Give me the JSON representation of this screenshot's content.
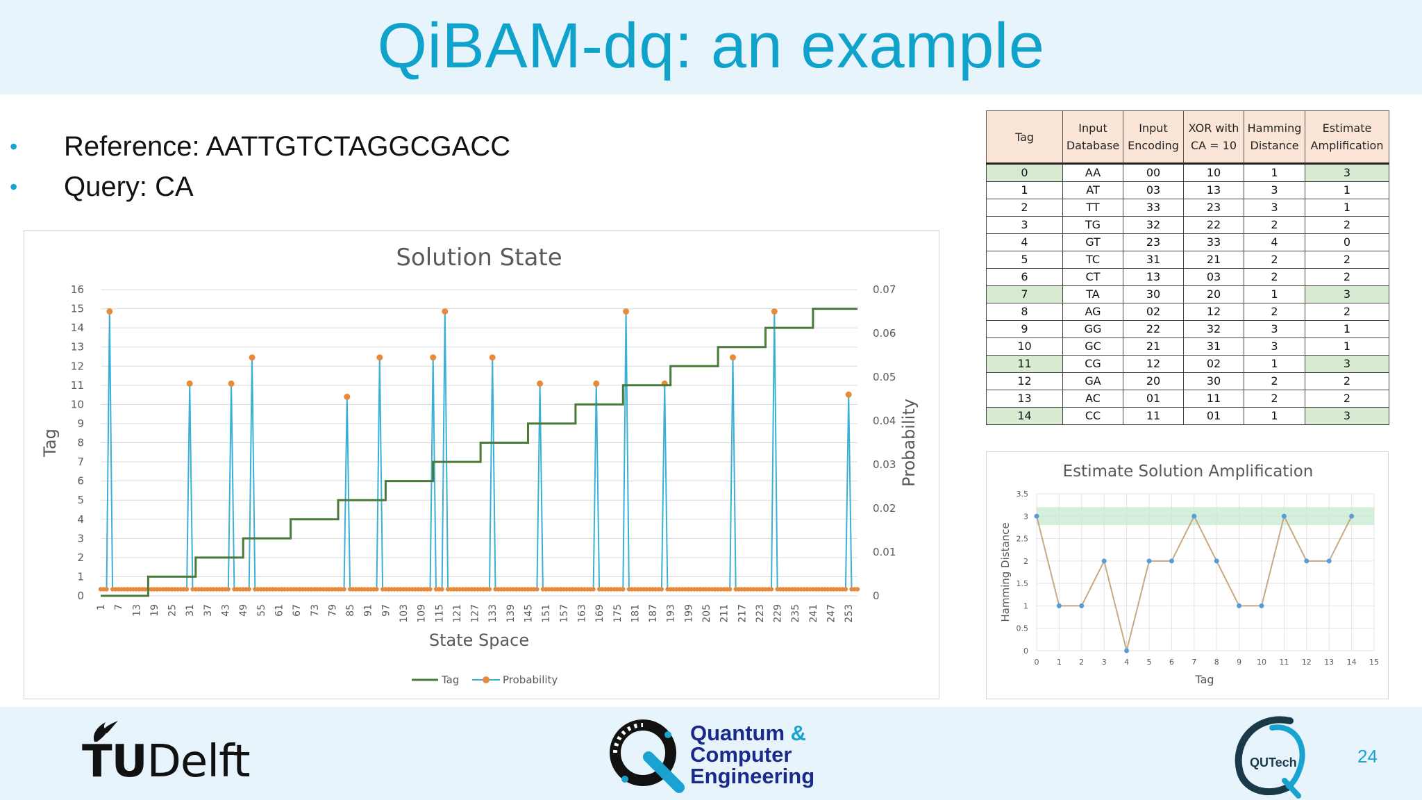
{
  "title": "QiBAM-dq: an example",
  "bullets": [
    "Reference: AATTGTCTAGGCGACC",
    "Query: CA"
  ],
  "table": {
    "headers": [
      "Tag",
      "Input Database",
      "Input Encoding",
      "XOR with CA = 10",
      "Hamming Distance",
      "Estimate Amplification"
    ],
    "highlight_color": "#d9ead3",
    "header_color": "#fbe5d6",
    "rows": [
      {
        "cells": [
          "0",
          "AA",
          "00",
          "10",
          "1",
          "3"
        ],
        "highlight": true
      },
      {
        "cells": [
          "1",
          "AT",
          "03",
          "13",
          "3",
          "1"
        ],
        "highlight": false
      },
      {
        "cells": [
          "2",
          "TT",
          "33",
          "23",
          "3",
          "1"
        ],
        "highlight": false
      },
      {
        "cells": [
          "3",
          "TG",
          "32",
          "22",
          "2",
          "2"
        ],
        "highlight": false
      },
      {
        "cells": [
          "4",
          "GT",
          "23",
          "33",
          "4",
          "0"
        ],
        "highlight": false
      },
      {
        "cells": [
          "5",
          "TC",
          "31",
          "21",
          "2",
          "2"
        ],
        "highlight": false
      },
      {
        "cells": [
          "6",
          "CT",
          "13",
          "03",
          "2",
          "2"
        ],
        "highlight": false
      },
      {
        "cells": [
          "7",
          "TA",
          "30",
          "20",
          "1",
          "3"
        ],
        "highlight": true
      },
      {
        "cells": [
          "8",
          "AG",
          "02",
          "12",
          "2",
          "2"
        ],
        "highlight": false
      },
      {
        "cells": [
          "9",
          "GG",
          "22",
          "32",
          "3",
          "1"
        ],
        "highlight": false
      },
      {
        "cells": [
          "10",
          "GC",
          "21",
          "31",
          "3",
          "1"
        ],
        "highlight": false
      },
      {
        "cells": [
          "11",
          "CG",
          "12",
          "02",
          "1",
          "3"
        ],
        "highlight": true
      },
      {
        "cells": [
          "12",
          "GA",
          "20",
          "30",
          "2",
          "2"
        ],
        "highlight": false
      },
      {
        "cells": [
          "13",
          "AC",
          "01",
          "11",
          "2",
          "2"
        ],
        "highlight": false
      },
      {
        "cells": [
          "14",
          "CC",
          "11",
          "01",
          "1",
          "3"
        ],
        "highlight": true
      }
    ]
  },
  "chart_data": [
    {
      "type": "line",
      "title": "Solution State",
      "xlabel": "State Space",
      "ylabel": "Tag",
      "y2label": "Probability",
      "x_tick_labels": [
        "1",
        "7",
        "13",
        "19",
        "25",
        "31",
        "37",
        "43",
        "49",
        "55",
        "61",
        "67",
        "73",
        "79",
        "85",
        "91",
        "97",
        "103",
        "109",
        "115",
        "121",
        "127",
        "133",
        "139",
        "145",
        "151",
        "157",
        "163",
        "169",
        "175",
        "181",
        "187",
        "193",
        "199",
        "205",
        "211",
        "217",
        "223",
        "229",
        "235",
        "241",
        "247",
        "253"
      ],
      "xlim": [
        1,
        256
      ],
      "ylim": [
        0,
        16
      ],
      "y_ticks": [
        0,
        1,
        2,
        3,
        4,
        5,
        6,
        7,
        8,
        9,
        10,
        11,
        12,
        13,
        14,
        15,
        16
      ],
      "y2lim": [
        0,
        0.07
      ],
      "y2_ticks": [
        "0",
        "0.01",
        "0.02",
        "0.03",
        "0.04",
        "0.05",
        "0.06",
        "0.07"
      ],
      "legend": [
        "Tag",
        "Probability"
      ],
      "legend_position": "bottom",
      "colors": {
        "Tag": "#4a7a3a",
        "Probability": "#3ab0d8",
        "Marker": "#e88a3a"
      },
      "series": [
        {
          "name": "Tag",
          "axis": "left",
          "step_starts": [
            1,
            17,
            33,
            49,
            65,
            81,
            97,
            113,
            129,
            145,
            161,
            177,
            193,
            209,
            225,
            241
          ],
          "values": [
            0,
            1,
            2,
            3,
            4,
            5,
            6,
            7,
            8,
            9,
            10,
            11,
            12,
            13,
            14,
            15
          ]
        },
        {
          "name": "Probability",
          "axis": "right",
          "baseline": 0.0015,
          "peaks": [
            {
              "x": 4,
              "y": 0.065
            },
            {
              "x": 31,
              "y": 0.0485
            },
            {
              "x": 45,
              "y": 0.0485
            },
            {
              "x": 52,
              "y": 0.0545
            },
            {
              "x": 84,
              "y": 0.0455
            },
            {
              "x": 95,
              "y": 0.0545
            },
            {
              "x": 113,
              "y": 0.0545
            },
            {
              "x": 117,
              "y": 0.065
            },
            {
              "x": 133,
              "y": 0.0545
            },
            {
              "x": 149,
              "y": 0.0485
            },
            {
              "x": 168,
              "y": 0.0485
            },
            {
              "x": 178,
              "y": 0.065
            },
            {
              "x": 191,
              "y": 0.0485
            },
            {
              "x": 214,
              "y": 0.0545
            },
            {
              "x": 228,
              "y": 0.065
            },
            {
              "x": 253,
              "y": 0.046
            }
          ]
        }
      ]
    },
    {
      "type": "line",
      "title": "Estimate Solution Amplification",
      "xlabel": "Tag",
      "ylabel": "Hamming Distance",
      "x": [
        0,
        1,
        2,
        3,
        4,
        5,
        6,
        7,
        8,
        9,
        10,
        11,
        12,
        13,
        14
      ],
      "values": [
        3,
        1,
        1,
        2,
        0,
        2,
        2,
        3,
        2,
        1,
        1,
        3,
        2,
        2,
        3
      ],
      "xlim": [
        0,
        15
      ],
      "ylim": [
        0,
        3.5
      ],
      "x_ticks": [
        "0",
        "1",
        "2",
        "3",
        "4",
        "5",
        "6",
        "7",
        "8",
        "9",
        "10",
        "11",
        "12",
        "13",
        "14",
        "15"
      ],
      "y_ticks": [
        "0",
        "0.5",
        "1",
        "1.5",
        "2",
        "2.5",
        "3",
        "3.5"
      ],
      "highlight_band": [
        2.8,
        3.2
      ],
      "colors": {
        "line": "#c8a880",
        "marker": "#5b9bd5",
        "band": "#c6e9cf"
      }
    }
  ],
  "footer": {
    "left_logo": "TUDelft",
    "center_logo": [
      "Quantum &",
      "Computer",
      "Engineering"
    ],
    "right_logo": "QUTech",
    "page_number": "24"
  }
}
